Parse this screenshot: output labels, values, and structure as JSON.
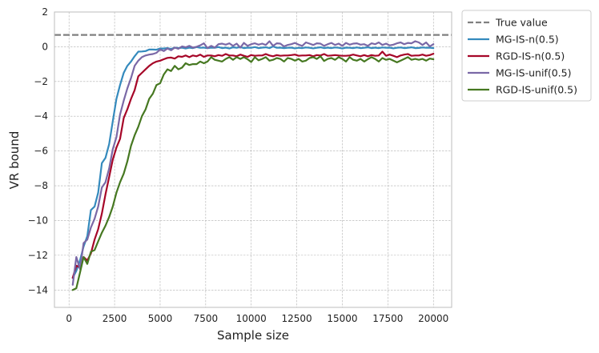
{
  "chart_data": {
    "type": "line",
    "title": "",
    "xlabel": "Sample size",
    "ylabel": "VR bound",
    "xlim": [
      -800,
      21000
    ],
    "ylim": [
      -15,
      2
    ],
    "xticks": [
      0,
      2500,
      5000,
      7500,
      10000,
      12500,
      15000,
      17500,
      20000
    ],
    "xtick_labels": [
      "0",
      "2500",
      "5000",
      "7500",
      "10000",
      "12500",
      "15000",
      "17500",
      "20000"
    ],
    "yticks": [
      -14,
      -12,
      -10,
      -8,
      -6,
      -4,
      -2,
      0,
      2
    ],
    "ytick_labels": [
      "−14",
      "−12",
      "−10",
      "−8",
      "−6",
      "−4",
      "−2",
      "0",
      "2"
    ],
    "grid": true,
    "grid_style": "dashed",
    "legend_position": "outside-top-right",
    "reference_line": {
      "name": "True value",
      "y": 0.68,
      "color": "#808080",
      "style": "dashed"
    },
    "x": [
      200,
      400,
      600,
      800,
      1000,
      1200,
      1400,
      1600,
      1800,
      2000,
      2200,
      2400,
      2600,
      2800,
      3000,
      3200,
      3400,
      3600,
      3800,
      4000,
      4200,
      4400,
      4600,
      4800,
      5000,
      5200,
      5400,
      5600,
      5800,
      6000,
      6200,
      6400,
      6600,
      6800,
      7000,
      7200,
      7400,
      7600,
      7800,
      8000,
      8200,
      8400,
      8600,
      8800,
      9000,
      9200,
      9400,
      9600,
      9800,
      10000,
      10200,
      10400,
      10600,
      10800,
      11000,
      11200,
      11400,
      11600,
      11800,
      12000,
      12200,
      12400,
      12600,
      12800,
      13000,
      13200,
      13400,
      13600,
      13800,
      14000,
      14200,
      14400,
      14600,
      14800,
      15000,
      15200,
      15400,
      15600,
      15800,
      16000,
      16200,
      16400,
      16600,
      16800,
      17000,
      17200,
      17400,
      17600,
      17800,
      18000,
      18200,
      18400,
      18600,
      18800,
      19000,
      19200,
      19400,
      19600,
      19800,
      20000
    ],
    "series": [
      {
        "name": "MG-IS-n(0.5)",
        "color": "#348abd",
        "values": [
          -13.3,
          -12.9,
          -12.3,
          -11.5,
          -10.9,
          -9.4,
          -9.2,
          -8.4,
          -6.7,
          -6.4,
          -5.6,
          -4.3,
          -3.0,
          -2.2,
          -1.5,
          -1.1,
          -0.85,
          -0.55,
          -0.28,
          -0.27,
          -0.25,
          -0.16,
          -0.16,
          -0.17,
          -0.1,
          -0.1,
          -0.08,
          -0.13,
          -0.05,
          -0.08,
          -0.05,
          -0.1,
          -0.05,
          -0.08,
          -0.02,
          -0.06,
          -0.05,
          -0.08,
          -0.05,
          -0.06,
          -0.02,
          -0.08,
          -0.05,
          -0.1,
          -0.03,
          -0.06,
          -0.02,
          -0.08,
          -0.05,
          -0.06,
          -0.02,
          -0.08,
          -0.05,
          -0.03,
          -0.08,
          0.02,
          -0.06,
          -0.05,
          -0.08,
          -0.06,
          -0.05,
          -0.09,
          -0.06,
          -0.08,
          -0.04,
          -0.06,
          -0.09,
          -0.06,
          -0.03,
          -0.08,
          -0.05,
          -0.08,
          -0.04,
          -0.06,
          -0.1,
          -0.05,
          -0.06,
          -0.08,
          -0.04,
          -0.08,
          -0.06,
          -0.03,
          -0.08,
          -0.05,
          -0.08,
          -0.04,
          -0.06,
          -0.05,
          -0.09,
          -0.06,
          -0.04,
          -0.08,
          -0.06,
          -0.03,
          -0.08,
          -0.07,
          -0.04,
          -0.06,
          -0.05,
          -0.08
        ]
      },
      {
        "name": "RGD-IS-n(0.5)",
        "color": "#a60628",
        "values": [
          -13.3,
          -12.6,
          -12.7,
          -12.1,
          -12.3,
          -11.9,
          -11.1,
          -10.5,
          -9.6,
          -8.5,
          -7.5,
          -6.5,
          -5.8,
          -5.3,
          -4.1,
          -3.6,
          -3.0,
          -2.5,
          -1.7,
          -1.5,
          -1.3,
          -1.1,
          -0.95,
          -0.85,
          -0.8,
          -0.72,
          -0.64,
          -0.62,
          -0.68,
          -0.55,
          -0.58,
          -0.5,
          -0.6,
          -0.5,
          -0.55,
          -0.45,
          -0.58,
          -0.5,
          -0.5,
          -0.55,
          -0.48,
          -0.52,
          -0.42,
          -0.5,
          -0.5,
          -0.55,
          -0.45,
          -0.52,
          -0.58,
          -0.48,
          -0.52,
          -0.5,
          -0.5,
          -0.42,
          -0.5,
          -0.55,
          -0.48,
          -0.52,
          -0.5,
          -0.5,
          -0.48,
          -0.45,
          -0.52,
          -0.5,
          -0.5,
          -0.48,
          -0.55,
          -0.48,
          -0.5,
          -0.42,
          -0.52,
          -0.5,
          -0.48,
          -0.5,
          -0.52,
          -0.52,
          -0.5,
          -0.45,
          -0.5,
          -0.55,
          -0.48,
          -0.55,
          -0.48,
          -0.52,
          -0.5,
          -0.28,
          -0.52,
          -0.45,
          -0.52,
          -0.6,
          -0.5,
          -0.45,
          -0.42,
          -0.52,
          -0.5,
          -0.5,
          -0.45,
          -0.52,
          -0.48,
          -0.4
        ]
      },
      {
        "name": "MG-IS-unif(0.5)",
        "color": "#7a68a6",
        "values": [
          -13.7,
          -12.1,
          -12.8,
          -11.3,
          -11.1,
          -10.4,
          -9.9,
          -9.2,
          -8.1,
          -7.8,
          -7.0,
          -5.9,
          -5.2,
          -3.9,
          -3.1,
          -2.4,
          -1.8,
          -1.1,
          -0.8,
          -0.6,
          -0.5,
          -0.45,
          -0.42,
          -0.35,
          -0.15,
          -0.25,
          -0.1,
          -0.2,
          -0.05,
          -0.12,
          0.02,
          -0.03,
          0.05,
          -0.05,
          0.0,
          0.08,
          0.2,
          -0.08,
          0.05,
          -0.05,
          0.15,
          0.18,
          0.12,
          0.2,
          0.05,
          0.18,
          -0.05,
          0.22,
          0.05,
          0.15,
          0.2,
          0.12,
          0.18,
          0.1,
          0.32,
          0.05,
          0.2,
          0.18,
          0.02,
          0.1,
          0.15,
          0.22,
          0.12,
          0.05,
          0.25,
          0.18,
          0.1,
          0.2,
          0.18,
          0.05,
          0.15,
          0.22,
          0.1,
          0.18,
          0.05,
          0.22,
          0.12,
          0.18,
          0.2,
          0.12,
          0.15,
          0.05,
          0.2,
          0.15,
          0.25,
          0.1,
          0.18,
          0.08,
          0.12,
          0.2,
          0.25,
          0.15,
          0.22,
          0.2,
          0.32,
          0.25,
          0.1,
          0.25,
          0.02,
          0.15
        ]
      },
      {
        "name": "RGD-IS-unif(0.5)",
        "color": "#467821",
        "values": [
          -14.0,
          -13.9,
          -13.0,
          -12.1,
          -12.5,
          -11.8,
          -11.7,
          -11.2,
          -10.7,
          -10.3,
          -9.8,
          -9.2,
          -8.4,
          -7.8,
          -7.3,
          -6.6,
          -5.7,
          -5.1,
          -4.6,
          -4.0,
          -3.6,
          -3.0,
          -2.7,
          -2.2,
          -2.1,
          -1.6,
          -1.3,
          -1.4,
          -1.1,
          -1.3,
          -1.2,
          -0.95,
          -1.05,
          -1.0,
          -1.0,
          -0.85,
          -0.95,
          -0.85,
          -0.6,
          -0.75,
          -0.8,
          -0.85,
          -0.7,
          -0.6,
          -0.75,
          -0.6,
          -0.7,
          -0.6,
          -0.72,
          -0.88,
          -0.6,
          -0.78,
          -0.7,
          -0.6,
          -0.8,
          -0.75,
          -0.65,
          -0.7,
          -0.85,
          -0.65,
          -0.7,
          -0.8,
          -0.7,
          -0.85,
          -0.8,
          -0.65,
          -0.6,
          -0.7,
          -0.55,
          -0.82,
          -0.7,
          -0.65,
          -0.75,
          -0.6,
          -0.7,
          -0.85,
          -0.6,
          -0.75,
          -0.8,
          -0.7,
          -0.85,
          -0.72,
          -0.6,
          -0.7,
          -0.85,
          -0.65,
          -0.75,
          -0.7,
          -0.8,
          -0.9,
          -0.8,
          -0.7,
          -0.6,
          -0.75,
          -0.7,
          -0.75,
          -0.7,
          -0.8,
          -0.68,
          -0.72
        ]
      }
    ]
  },
  "legend": {
    "entries": [
      {
        "label": "True value",
        "color": "#808080",
        "dashed": true
      },
      {
        "label": "MG-IS-n(0.5)",
        "color": "#348abd",
        "dashed": false
      },
      {
        "label": "RGD-IS-n(0.5)",
        "color": "#a60628",
        "dashed": false
      },
      {
        "label": "MG-IS-unif(0.5)",
        "color": "#7a68a6",
        "dashed": false
      },
      {
        "label": "RGD-IS-unif(0.5)",
        "color": "#467821",
        "dashed": false
      }
    ]
  }
}
